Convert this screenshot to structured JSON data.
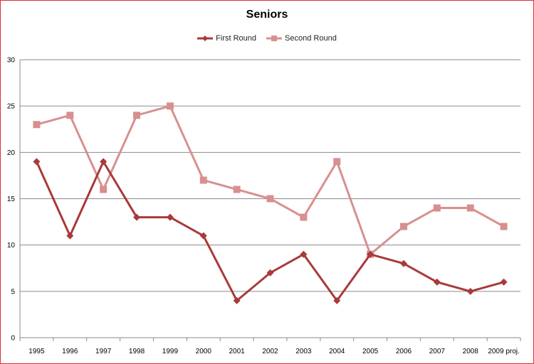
{
  "chart_data": {
    "type": "line",
    "title": "Seniors",
    "categories": [
      "1995",
      "1996",
      "1997",
      "1998",
      "1999",
      "2000",
      "2001",
      "2002",
      "2003",
      "2004",
      "2005",
      "2006",
      "2007",
      "2008",
      "2009 proj."
    ],
    "series": [
      {
        "name": "First Round",
        "color": "#a83a3a",
        "marker": "diamond",
        "values": [
          19,
          11,
          19,
          13,
          13,
          11,
          4,
          7,
          9,
          4,
          9,
          8,
          6,
          5,
          6
        ]
      },
      {
        "name": "Second Round",
        "color": "#d88f8f",
        "marker": "square",
        "values": [
          23,
          24,
          16,
          24,
          25,
          17,
          16,
          15,
          13,
          19,
          9,
          12,
          14,
          14,
          12
        ]
      }
    ],
    "ylim": [
      0,
      30
    ],
    "yticks": [
      0,
      5,
      10,
      15,
      20,
      25,
      30
    ],
    "grid": true,
    "legend": "top-center"
  }
}
